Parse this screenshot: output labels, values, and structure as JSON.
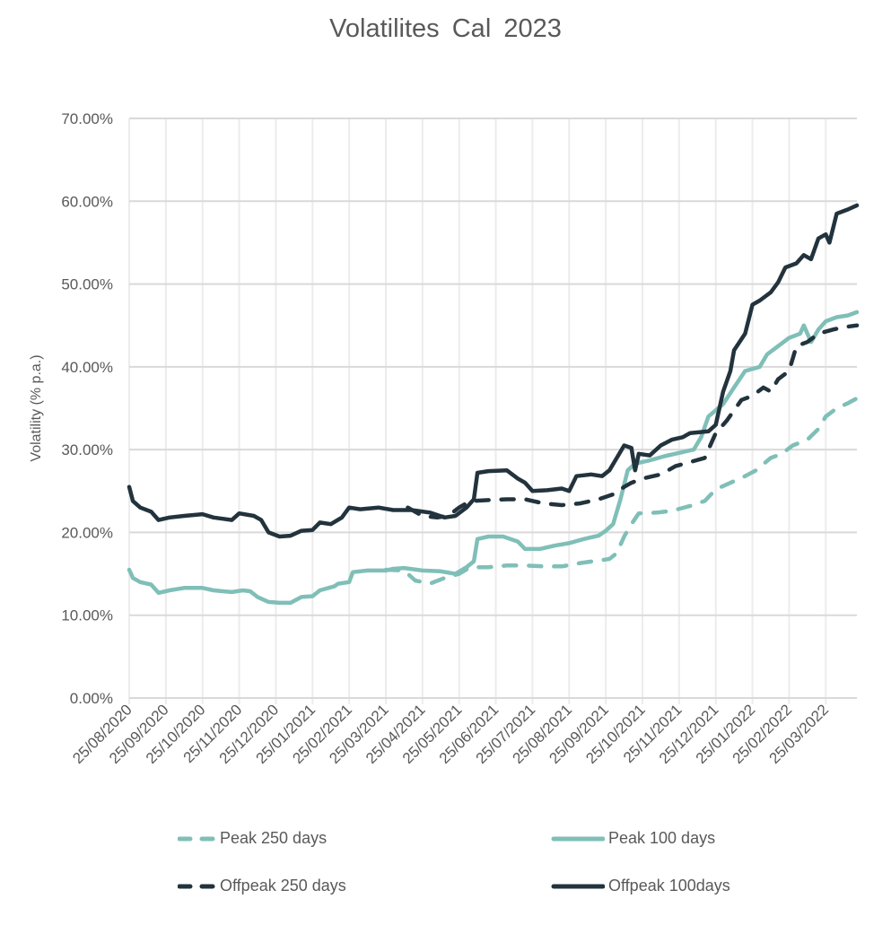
{
  "chart_data": {
    "type": "line",
    "title": "Volatilites  Cal 2023",
    "xlabel": "",
    "ylabel": "Volatility (% p.a.)",
    "ylim": [
      0,
      70
    ],
    "yticks": [
      0,
      10,
      20,
      30,
      40,
      50,
      60,
      70
    ],
    "ytick_labels": [
      "0.00%",
      "10.00%",
      "20.00%",
      "30.00%",
      "40.00%",
      "50.00%",
      "60.00%",
      "70.00%"
    ],
    "x_unit": "months since 25/08/2020",
    "xlim": [
      0,
      19.85
    ],
    "xtick_labels": [
      "25/08/2020",
      "25/09/2020",
      "25/10/2020",
      "25/11/2020",
      "25/12/2020",
      "25/01/2021",
      "25/02/2021",
      "25/03/2021",
      "25/04/2021",
      "25/05/2021",
      "25/06/2021",
      "25/07/2021",
      "25/08/2021",
      "25/09/2021",
      "25/10/2021",
      "25/11/2021",
      "25/12/2021",
      "25/01/2022",
      "25/02/2022",
      "25/03/2022"
    ],
    "grid": true,
    "legend_position": "bottom",
    "series": [
      {
        "name": "Peak 250 days",
        "color": "#7FBFB8",
        "style": "dashed",
        "points": [
          [
            7.0,
            15.5
          ],
          [
            7.5,
            15.4
          ],
          [
            7.8,
            14.2
          ],
          [
            8.2,
            13.8
          ],
          [
            8.6,
            14.5
          ],
          [
            9.0,
            15.0
          ],
          [
            9.3,
            15.8
          ],
          [
            9.8,
            15.8
          ],
          [
            10.3,
            16.0
          ],
          [
            10.8,
            16.0
          ],
          [
            11.3,
            15.9
          ],
          [
            11.8,
            15.9
          ],
          [
            12.3,
            16.3
          ],
          [
            12.8,
            16.6
          ],
          [
            13.1,
            16.8
          ],
          [
            13.3,
            17.5
          ],
          [
            13.5,
            19.5
          ],
          [
            13.7,
            21.0
          ],
          [
            13.9,
            22.3
          ],
          [
            14.4,
            22.4
          ],
          [
            14.8,
            22.6
          ],
          [
            15.3,
            23.2
          ],
          [
            15.7,
            23.8
          ],
          [
            16.0,
            25.2
          ],
          [
            16.3,
            25.8
          ],
          [
            16.8,
            26.8
          ],
          [
            17.1,
            27.5
          ],
          [
            17.5,
            29.0
          ],
          [
            17.8,
            29.5
          ],
          [
            18.1,
            30.5
          ],
          [
            18.5,
            31.2
          ],
          [
            18.8,
            32.5
          ],
          [
            19.0,
            34.0
          ],
          [
            19.3,
            35.0
          ],
          [
            19.6,
            35.6
          ],
          [
            19.85,
            36.2
          ]
        ]
      },
      {
        "name": "Peak 100 days",
        "color": "#7FBFB8",
        "style": "solid",
        "points": [
          [
            0,
            15.5
          ],
          [
            0.1,
            14.5
          ],
          [
            0.3,
            14.0
          ],
          [
            0.6,
            13.7
          ],
          [
            0.8,
            12.7
          ],
          [
            1.1,
            13.0
          ],
          [
            1.5,
            13.3
          ],
          [
            2.0,
            13.3
          ],
          [
            2.3,
            13.0
          ],
          [
            2.8,
            12.8
          ],
          [
            3.1,
            13.0
          ],
          [
            3.3,
            12.9
          ],
          [
            3.5,
            12.2
          ],
          [
            3.8,
            11.6
          ],
          [
            4.1,
            11.5
          ],
          [
            4.4,
            11.5
          ],
          [
            4.7,
            12.2
          ],
          [
            5.0,
            12.3
          ],
          [
            5.2,
            13.0
          ],
          [
            5.6,
            13.5
          ],
          [
            5.7,
            13.8
          ],
          [
            6.0,
            14.0
          ],
          [
            6.1,
            15.2
          ],
          [
            6.5,
            15.4
          ],
          [
            7.0,
            15.4
          ],
          [
            7.2,
            15.6
          ],
          [
            7.5,
            15.7
          ],
          [
            8.0,
            15.4
          ],
          [
            8.5,
            15.3
          ],
          [
            8.9,
            15.0
          ],
          [
            9.2,
            15.8
          ],
          [
            9.4,
            16.5
          ],
          [
            9.5,
            19.2
          ],
          [
            9.8,
            19.5
          ],
          [
            10.2,
            19.5
          ],
          [
            10.6,
            18.9
          ],
          [
            10.8,
            18.0
          ],
          [
            11.2,
            18.0
          ],
          [
            11.6,
            18.4
          ],
          [
            12.0,
            18.7
          ],
          [
            12.4,
            19.2
          ],
          [
            12.8,
            19.6
          ],
          [
            13.0,
            20.2
          ],
          [
            13.2,
            21.0
          ],
          [
            13.4,
            24.0
          ],
          [
            13.6,
            27.5
          ],
          [
            13.8,
            28.3
          ],
          [
            14.2,
            28.7
          ],
          [
            14.6,
            29.2
          ],
          [
            15.0,
            29.6
          ],
          [
            15.4,
            30.0
          ],
          [
            15.6,
            31.5
          ],
          [
            15.8,
            34.0
          ],
          [
            16.2,
            35.5
          ],
          [
            16.5,
            37.5
          ],
          [
            16.8,
            39.5
          ],
          [
            17.2,
            40.0
          ],
          [
            17.4,
            41.5
          ],
          [
            17.7,
            42.5
          ],
          [
            18.0,
            43.5
          ],
          [
            18.3,
            44.0
          ],
          [
            18.4,
            45.0
          ],
          [
            18.6,
            43.0
          ],
          [
            18.8,
            44.5
          ],
          [
            19.0,
            45.5
          ],
          [
            19.3,
            46.0
          ],
          [
            19.6,
            46.2
          ],
          [
            19.85,
            46.6
          ]
        ]
      },
      {
        "name": "Offpeak 250 days",
        "color": "#22333D",
        "style": "dashed",
        "points": [
          [
            7.6,
            23.0
          ],
          [
            7.8,
            22.5
          ],
          [
            8.0,
            22.0
          ],
          [
            8.4,
            21.8
          ],
          [
            8.7,
            22.0
          ],
          [
            9.0,
            23.0
          ],
          [
            9.3,
            23.8
          ],
          [
            9.8,
            23.9
          ],
          [
            10.3,
            24.0
          ],
          [
            10.8,
            24.0
          ],
          [
            11.3,
            23.5
          ],
          [
            11.8,
            23.3
          ],
          [
            12.3,
            23.5
          ],
          [
            12.8,
            24.0
          ],
          [
            13.2,
            24.6
          ],
          [
            13.5,
            25.5
          ],
          [
            13.7,
            26.0
          ],
          [
            14.0,
            26.5
          ],
          [
            14.5,
            27.0
          ],
          [
            14.9,
            28.0
          ],
          [
            15.3,
            28.5
          ],
          [
            15.7,
            29.0
          ],
          [
            16.0,
            32.0
          ],
          [
            16.3,
            33.5
          ],
          [
            16.7,
            36.0
          ],
          [
            17.0,
            36.5
          ],
          [
            17.3,
            37.5
          ],
          [
            17.5,
            37.0
          ],
          [
            17.7,
            38.5
          ],
          [
            18.0,
            39.5
          ],
          [
            18.2,
            42.5
          ],
          [
            18.5,
            43.0
          ],
          [
            18.8,
            44.0
          ],
          [
            19.2,
            44.5
          ],
          [
            19.5,
            44.8
          ],
          [
            19.85,
            45.0
          ]
        ]
      },
      {
        "name": "Offpeak 100days",
        "color": "#22333D",
        "style": "solid",
        "points": [
          [
            0,
            25.5
          ],
          [
            0.1,
            23.8
          ],
          [
            0.3,
            23.0
          ],
          [
            0.6,
            22.5
          ],
          [
            0.8,
            21.5
          ],
          [
            1.1,
            21.8
          ],
          [
            1.5,
            22.0
          ],
          [
            2.0,
            22.2
          ],
          [
            2.3,
            21.8
          ],
          [
            2.8,
            21.5
          ],
          [
            3.0,
            22.3
          ],
          [
            3.4,
            22.0
          ],
          [
            3.6,
            21.5
          ],
          [
            3.8,
            20.0
          ],
          [
            4.1,
            19.5
          ],
          [
            4.4,
            19.6
          ],
          [
            4.7,
            20.2
          ],
          [
            5.0,
            20.3
          ],
          [
            5.2,
            21.2
          ],
          [
            5.5,
            21.0
          ],
          [
            5.8,
            21.8
          ],
          [
            6.0,
            23.0
          ],
          [
            6.3,
            22.8
          ],
          [
            6.8,
            23.0
          ],
          [
            7.2,
            22.7
          ],
          [
            7.7,
            22.7
          ],
          [
            8.2,
            22.4
          ],
          [
            8.6,
            21.8
          ],
          [
            8.9,
            22.0
          ],
          [
            9.2,
            23.0
          ],
          [
            9.4,
            24.0
          ],
          [
            9.5,
            27.2
          ],
          [
            9.8,
            27.4
          ],
          [
            10.3,
            27.5
          ],
          [
            10.6,
            26.5
          ],
          [
            10.8,
            26.0
          ],
          [
            11.0,
            25.0
          ],
          [
            11.4,
            25.1
          ],
          [
            11.8,
            25.3
          ],
          [
            12.0,
            25.0
          ],
          [
            12.2,
            26.8
          ],
          [
            12.6,
            27.0
          ],
          [
            12.9,
            26.8
          ],
          [
            13.1,
            27.5
          ],
          [
            13.3,
            29.0
          ],
          [
            13.5,
            30.5
          ],
          [
            13.7,
            30.2
          ],
          [
            13.8,
            27.5
          ],
          [
            13.9,
            29.5
          ],
          [
            14.2,
            29.3
          ],
          [
            14.5,
            30.5
          ],
          [
            14.8,
            31.2
          ],
          [
            15.1,
            31.5
          ],
          [
            15.3,
            32.0
          ],
          [
            15.8,
            32.2
          ],
          [
            16.0,
            33.0
          ],
          [
            16.2,
            37.0
          ],
          [
            16.4,
            39.5
          ],
          [
            16.5,
            42.0
          ],
          [
            16.8,
            44.0
          ],
          [
            17.0,
            47.5
          ],
          [
            17.2,
            48.0
          ],
          [
            17.5,
            49.0
          ],
          [
            17.7,
            50.2
          ],
          [
            17.9,
            52.0
          ],
          [
            18.2,
            52.5
          ],
          [
            18.4,
            53.5
          ],
          [
            18.6,
            53.0
          ],
          [
            18.8,
            55.5
          ],
          [
            19.0,
            56.0
          ],
          [
            19.1,
            55.0
          ],
          [
            19.3,
            58.5
          ],
          [
            19.6,
            59.0
          ],
          [
            19.85,
            59.5
          ]
        ]
      }
    ]
  }
}
